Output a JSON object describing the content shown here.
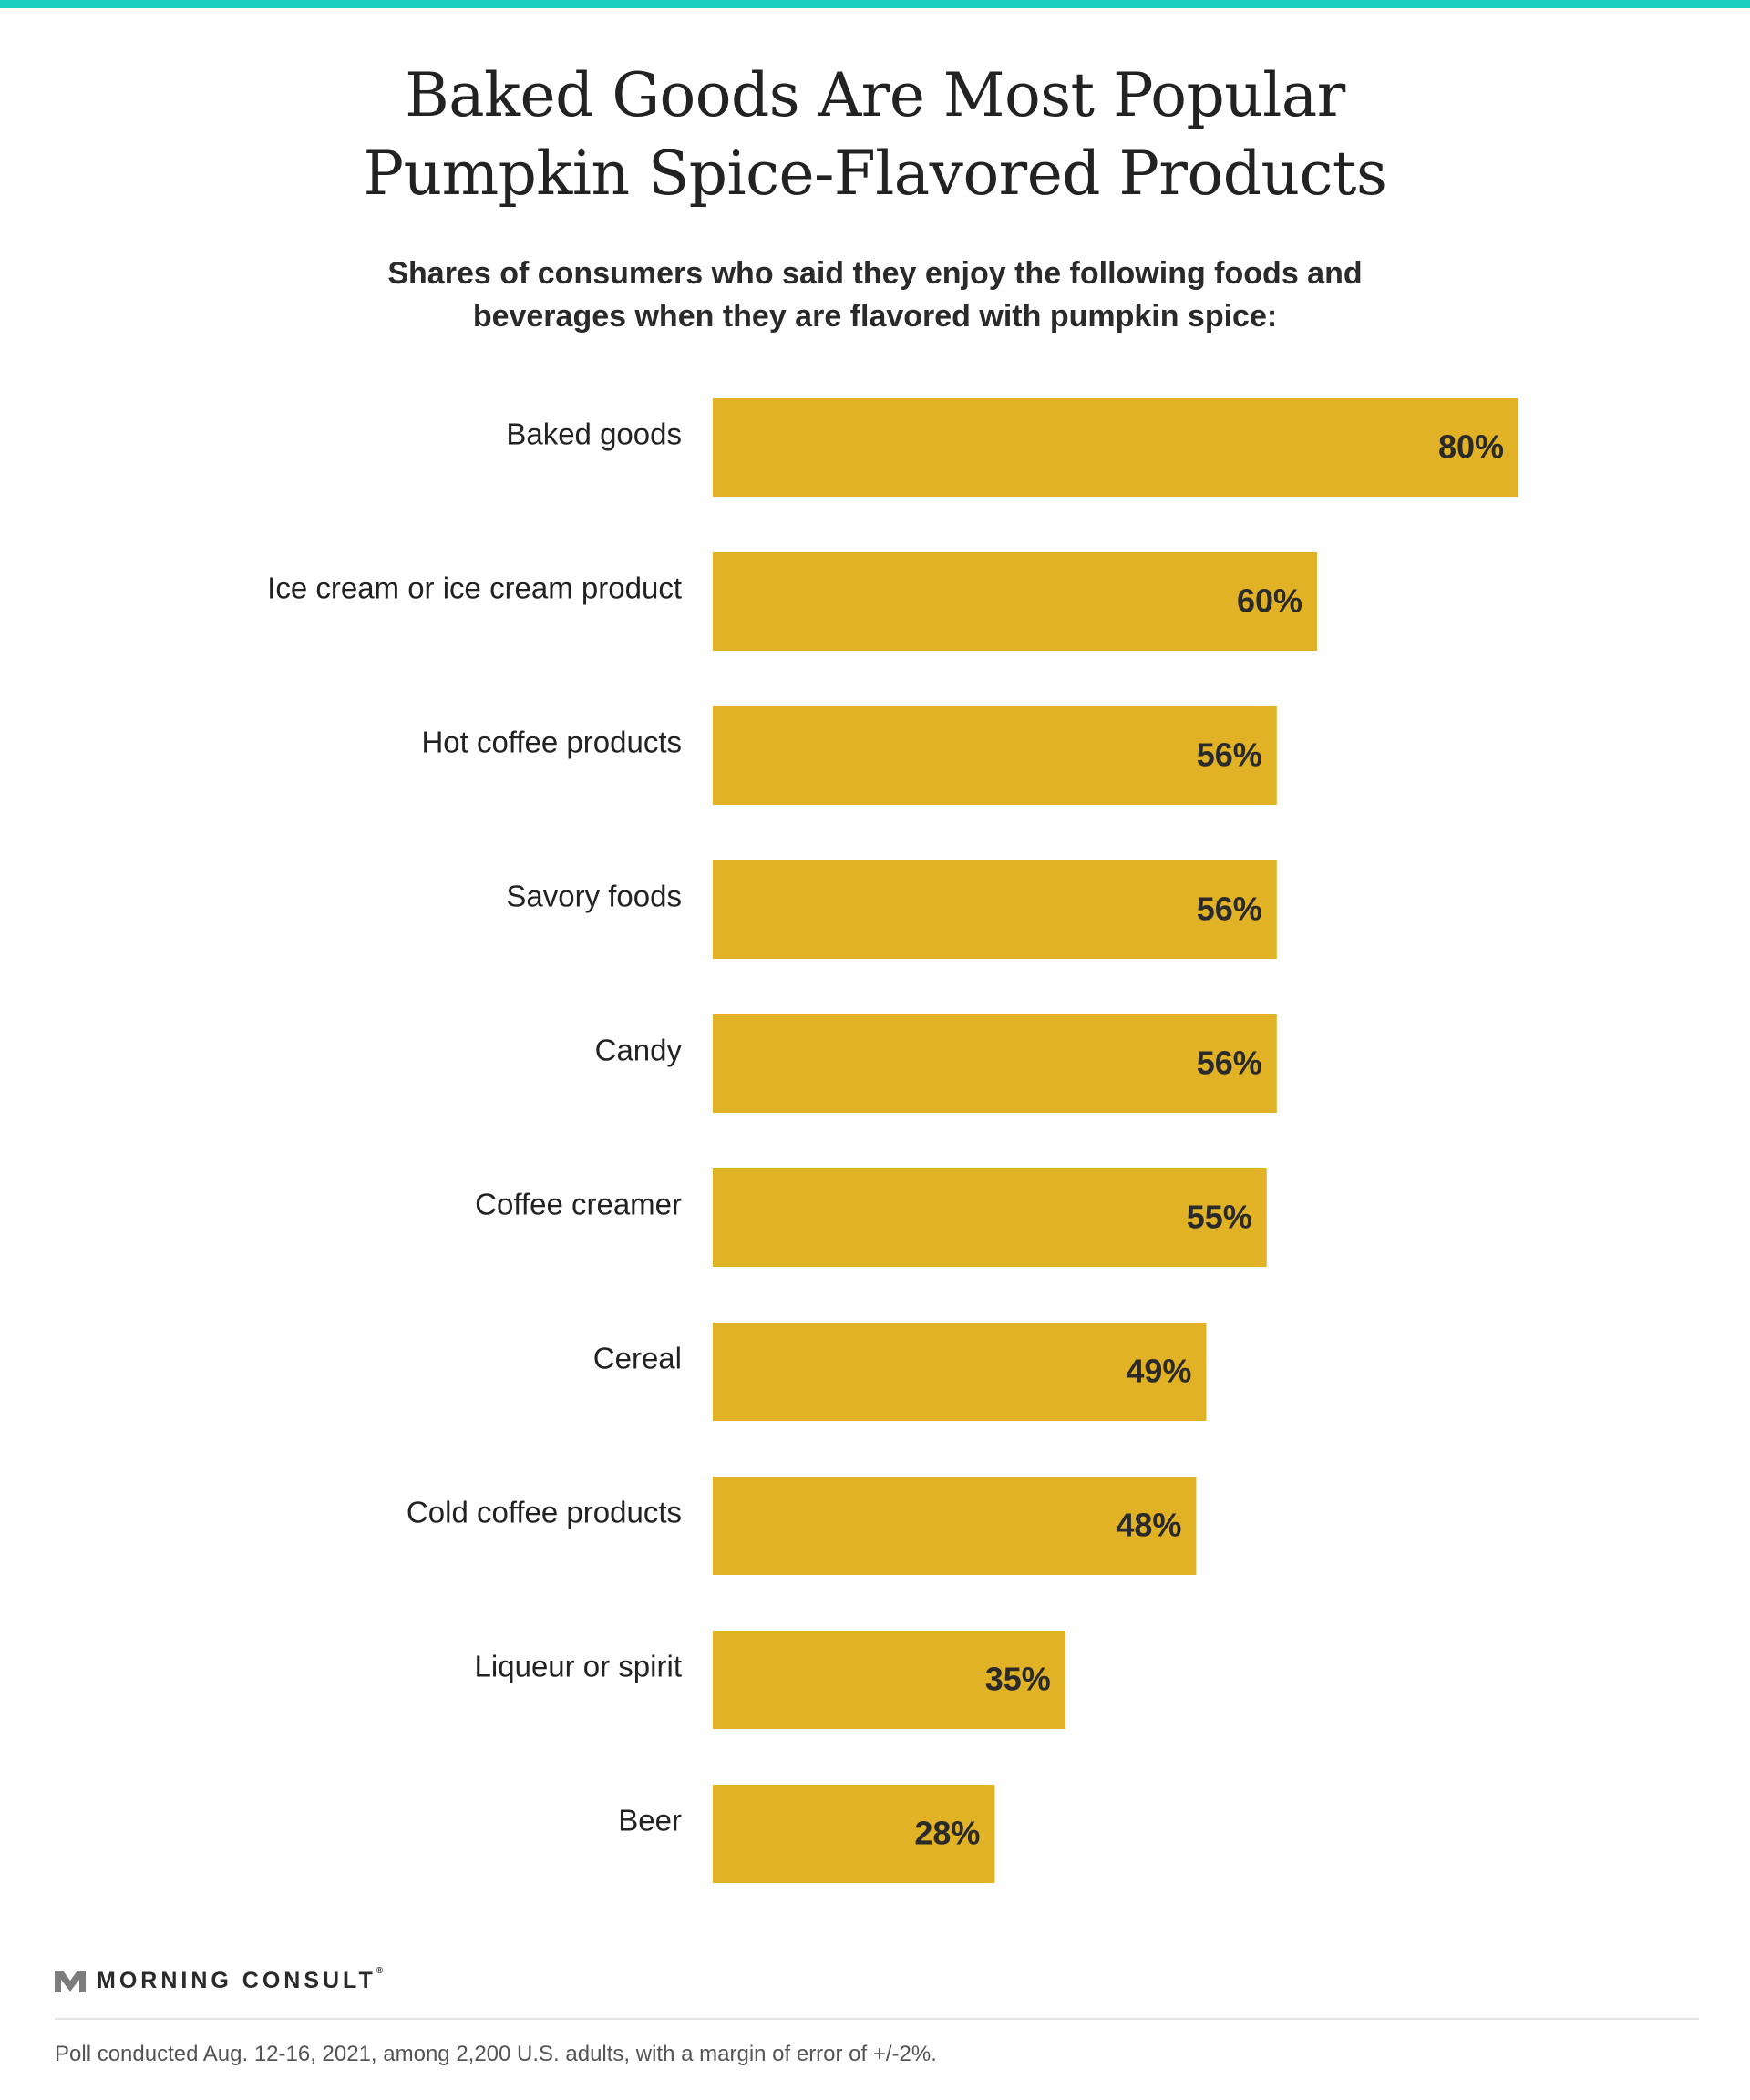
{
  "title_lines": [
    "Baked Goods Are Most Popular",
    "Pumpkin Spice-Flavored Products"
  ],
  "subtitle_lines": [
    "Shares of consumers who said they enjoy the following foods and",
    "beverages when they are flavored with pumpkin spice:"
  ],
  "colors": {
    "accent": "#19cdbf",
    "bar": "#e1b126",
    "text": "#222222"
  },
  "chart_data": {
    "type": "bar",
    "orientation": "horizontal",
    "title": "Baked Goods Are Most Popular Pumpkin Spice-Flavored Products",
    "subtitle": "Shares of consumers who said they enjoy the following foods and beverages when they are flavored with pumpkin spice:",
    "categories": [
      "Baked goods",
      "Ice cream or ice cream product",
      "Hot coffee products",
      "Savory foods",
      "Candy",
      "Coffee creamer",
      "Cereal",
      "Cold coffee products",
      "Liqueur or spirit",
      "Beer"
    ],
    "values": [
      80,
      60,
      56,
      56,
      56,
      55,
      49,
      48,
      35,
      28
    ],
    "value_labels": [
      "80%",
      "60%",
      "56%",
      "56%",
      "56%",
      "55%",
      "49%",
      "48%",
      "35%",
      "28%"
    ],
    "unit": "%",
    "xlim": [
      0,
      100
    ],
    "grid": false,
    "legend": "none"
  },
  "brand": {
    "name": "MORNING CONSULT",
    "mark": "®",
    "logo_icon": "morning-consult-m-icon"
  },
  "source_note": "Poll conducted Aug. 12-16, 2021, among 2,200 U.S. adults, with a margin of error of +/-2%."
}
